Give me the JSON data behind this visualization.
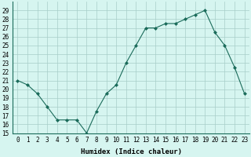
{
  "x": [
    0,
    1,
    2,
    3,
    4,
    5,
    6,
    7,
    8,
    9,
    10,
    11,
    12,
    13,
    14,
    15,
    16,
    17,
    18,
    19,
    20,
    21,
    22,
    23
  ],
  "y": [
    21,
    20.5,
    19.5,
    18,
    16.5,
    16.5,
    16.5,
    15,
    17.5,
    19.5,
    20.5,
    23,
    25,
    27,
    27,
    27.5,
    27.5,
    28,
    28.5,
    29,
    26.5,
    25,
    22.5,
    19.5
  ],
  "line_color": "#1a6b5a",
  "marker": "D",
  "marker_size": 2.0,
  "bg_color": "#d6f5f0",
  "grid_color": "#a8cec8",
  "xlabel": "Humidex (Indice chaleur)",
  "xlim": [
    -0.5,
    23.5
  ],
  "ylim": [
    15,
    30
  ],
  "yticks": [
    15,
    16,
    17,
    18,
    19,
    20,
    21,
    22,
    23,
    24,
    25,
    26,
    27,
    28,
    29
  ],
  "xtick_labels": [
    "0",
    "1",
    "2",
    "3",
    "4",
    "5",
    "6",
    "7",
    "8",
    "9",
    "10",
    "11",
    "12",
    "13",
    "14",
    "15",
    "16",
    "17",
    "18",
    "19",
    "20",
    "21",
    "22",
    "23"
  ],
  "label_fontsize": 6.5,
  "tick_fontsize": 5.5
}
